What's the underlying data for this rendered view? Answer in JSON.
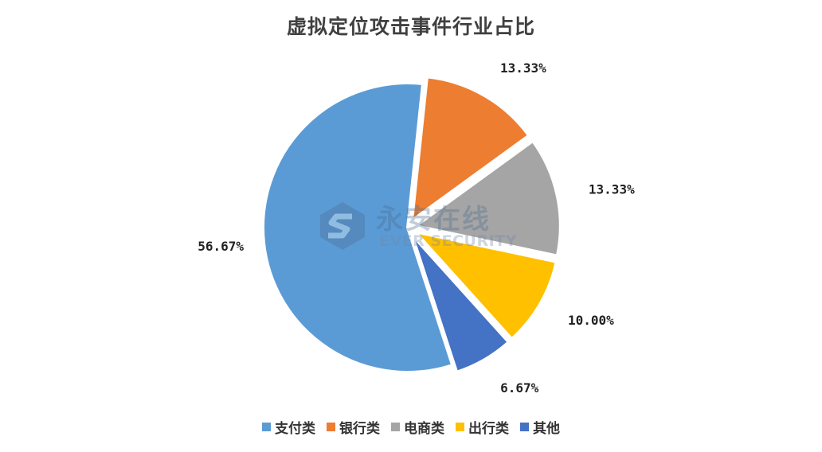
{
  "chart_data": {
    "type": "pie",
    "title": "虚拟定位攻击事件行业占比",
    "categories": [
      "支付类",
      "银行类",
      "电商类",
      "出行类",
      "其他"
    ],
    "values": [
      56.67,
      13.33,
      13.33,
      10.0,
      6.67
    ],
    "labels": [
      "56.67%",
      "13.33%",
      "13.33%",
      "10.00%",
      "6.67%"
    ],
    "colors": [
      "#5B9BD5",
      "#ED7D31",
      "#A5A5A5",
      "#FFC000",
      "#4472C4"
    ],
    "exploded": [
      false,
      true,
      true,
      true,
      true
    ],
    "legend_position": "bottom"
  },
  "watermark": {
    "text_cn": "永安在线",
    "text_en": "EVER SECURITY"
  }
}
